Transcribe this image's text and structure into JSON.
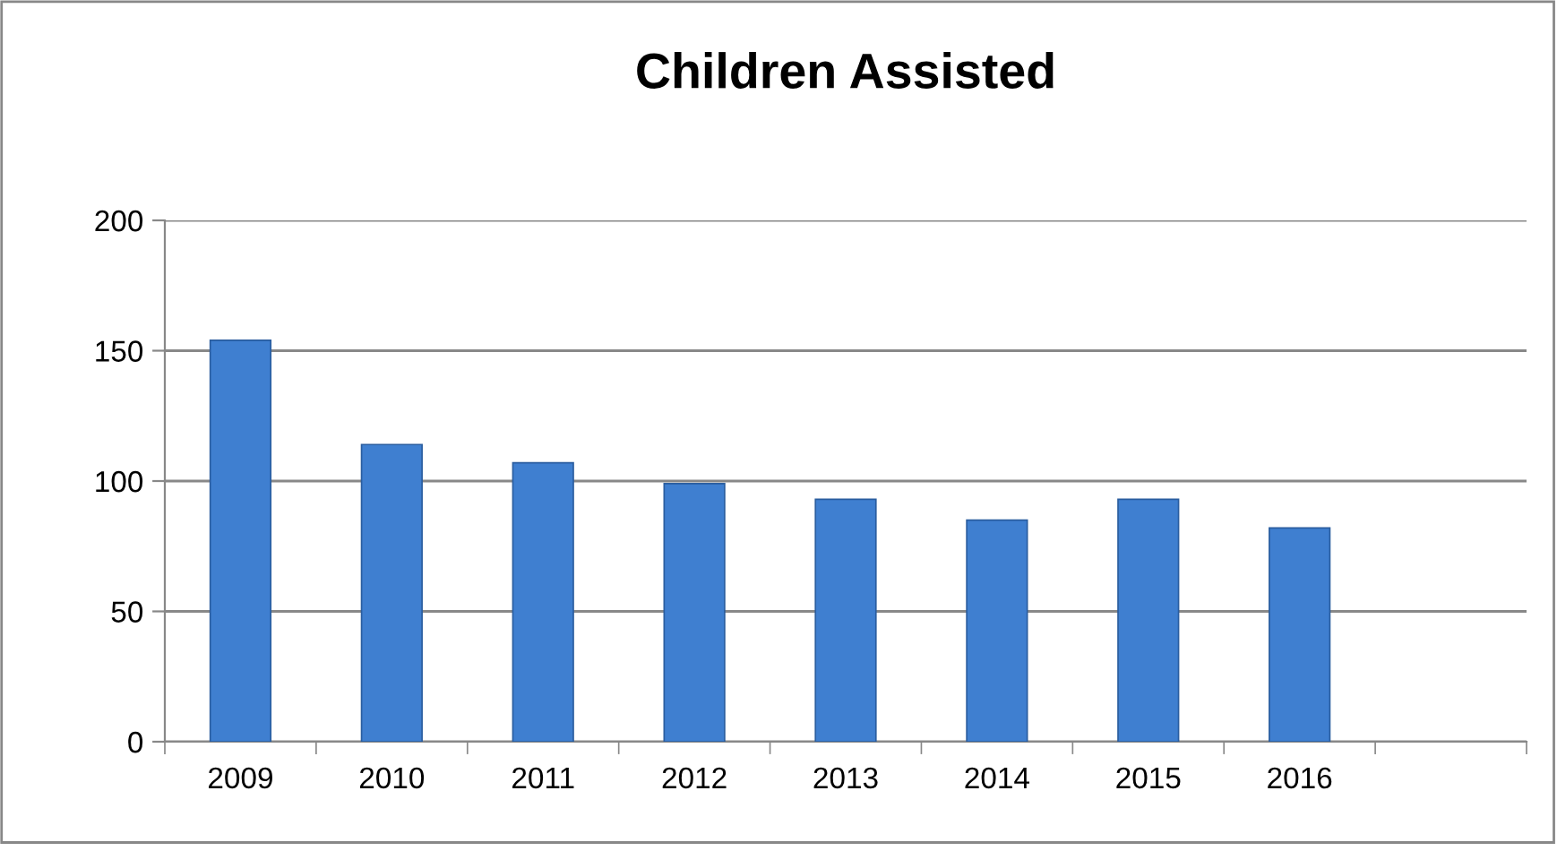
{
  "chart_data": {
    "type": "bar",
    "title": "Children Assisted",
    "categories": [
      "2009",
      "2010",
      "2011",
      "2012",
      "2013",
      "2014",
      "2015",
      "2016",
      null
    ],
    "values": [
      154,
      114,
      107,
      99,
      93,
      85,
      93,
      82,
      null
    ],
    "color": "#3f7fd0",
    "ylim": [
      0,
      200
    ],
    "yticks": [
      0,
      50,
      100,
      150,
      200
    ],
    "grid": "y",
    "legend": false
  }
}
